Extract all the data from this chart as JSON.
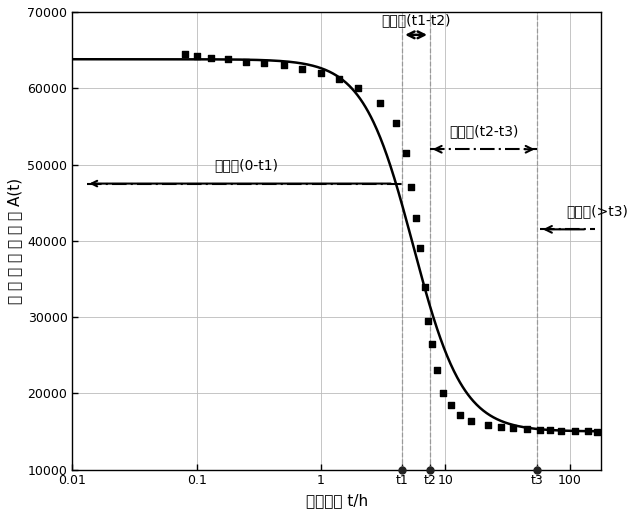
{
  "title": "",
  "xlabel": "水化时间 t/h",
  "ylabel": "第 一 回 波 峰 振 幅 A(t)",
  "xlim_min": 0.01,
  "xlim_max": 180,
  "ylim_min": 10000,
  "ylim_max": 70000,
  "yticks": [
    10000,
    20000,
    30000,
    40000,
    50000,
    60000,
    70000
  ],
  "t1": 4.5,
  "t2": 7.5,
  "t3": 55,
  "curve_color": "#000000",
  "marker_color": "#000000",
  "grid_color": "#bbbbbb",
  "background_color": "#ffffff",
  "phase_labels": {
    "initial": "初始期(0-t1)",
    "accel": "加速期(t1-t2)",
    "decel": "减速期(t2-t3)",
    "stable": "稳定期(>t3)"
  },
  "x_points": [
    0.08,
    0.1,
    0.13,
    0.18,
    0.25,
    0.35,
    0.5,
    0.7,
    1.0,
    1.4,
    2.0,
    3.0,
    4.0,
    4.8,
    5.3,
    5.8,
    6.3,
    6.8,
    7.3,
    7.8,
    8.5,
    9.5,
    11,
    13,
    16,
    22,
    28,
    35,
    45,
    58,
    70,
    85,
    110,
    140,
    165
  ],
  "y_manual": [
    64500,
    64200,
    64000,
    63800,
    63500,
    63300,
    63000,
    62500,
    62000,
    61200,
    60000,
    58000,
    55500,
    51500,
    47000,
    43000,
    39000,
    34000,
    29500,
    26500,
    23000,
    20000,
    18500,
    17200,
    16400,
    15800,
    15600,
    15400,
    15300,
    15200,
    15150,
    15100,
    15100,
    15000,
    14900
  ],
  "sigmoid_xmid": 5.5,
  "sigmoid_k": 5.0,
  "sigmoid_yhigh": 63800,
  "sigmoid_ylow": 15000
}
